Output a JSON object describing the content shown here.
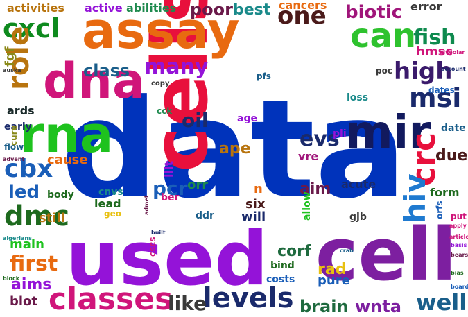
{
  "words": [
    {
      "text": "data",
      "color": "#0033bb"
    },
    {
      "text": "cells",
      "color": "#e8103c"
    },
    {
      "text": "used",
      "color": "#9413d8"
    },
    {
      "text": "cell",
      "color": "#7d1fa0"
    },
    {
      "text": "assay",
      "color": "#e86a10"
    },
    {
      "text": "dna",
      "color": "#d0157a"
    },
    {
      "text": "rna",
      "color": "#1ec21e"
    },
    {
      "text": "mir",
      "color": "#121a5e"
    },
    {
      "text": "classes",
      "color": "#d0157a"
    },
    {
      "text": "levels",
      "color": "#1a2a6b"
    },
    {
      "text": "can",
      "color": "#2ec22e"
    },
    {
      "text": "cxcl",
      "color": "#0e8a1e"
    },
    {
      "text": "role",
      "color": "#b8740e"
    },
    {
      "text": "crc",
      "color": "#e8103c"
    },
    {
      "text": "hiv",
      "color": "#1f7ad0"
    },
    {
      "text": "cbx",
      "color": "#1a5eb8"
    },
    {
      "text": "dmc",
      "color": "#1e6a1e"
    },
    {
      "text": "first",
      "color": "#e86a10"
    },
    {
      "text": "high",
      "color": "#3a1a6b"
    },
    {
      "text": "msi",
      "color": "#1a2a6b"
    },
    {
      "text": "many",
      "color": "#9413d8"
    },
    {
      "text": "one",
      "color": "#4a1a1a"
    },
    {
      "text": "biotic",
      "color": "#a0157a"
    },
    {
      "text": "fish",
      "color": "#0e8a4e"
    },
    {
      "text": "well",
      "color": "#1a5e8a"
    },
    {
      "text": "like",
      "color": "#3a3a3a"
    },
    {
      "text": "aims",
      "color": "#9413d8"
    },
    {
      "text": "brain",
      "color": "#1e6a3e"
    },
    {
      "text": "wnta",
      "color": "#7d1fa0"
    },
    {
      "text": "poor",
      "color": "#6a1a4a"
    },
    {
      "text": "best",
      "color": "#1a8a8a"
    },
    {
      "text": "pcr",
      "color": "#1a5eb8"
    },
    {
      "text": "evs",
      "color": "#1a2a6b"
    },
    {
      "text": "class",
      "color": "#1a5e8a"
    },
    {
      "text": "oil",
      "color": "#1a2a6b"
    },
    {
      "text": "ape",
      "color": "#b8740e"
    },
    {
      "text": "led",
      "color": "#1a5eb8"
    },
    {
      "text": "main",
      "color": "#1ec21e"
    },
    {
      "text": "cause",
      "color": "#e86a10"
    },
    {
      "text": "still",
      "color": "#b8740e"
    },
    {
      "text": "aim",
      "color": "#6a1a4a"
    },
    {
      "text": "corf",
      "color": "#1e6a3e"
    },
    {
      "text": "rad",
      "color": "#e8c010"
    },
    {
      "text": "pure",
      "color": "#1a5eb8"
    },
    {
      "text": "due",
      "color": "#4a1a1a"
    },
    {
      "text": "hmsc",
      "color": "#d0157a"
    },
    {
      "text": "error",
      "color": "#3a3a3a"
    },
    {
      "text": "cancers",
      "color": "#e86a10"
    },
    {
      "text": "abilities",
      "color": "#1e8a4e"
    },
    {
      "text": "active",
      "color": "#9413d8"
    },
    {
      "text": "activities",
      "color": "#b8740e"
    },
    {
      "text": "fgf",
      "color": "#8a8a1a"
    },
    {
      "text": "ards",
      "color": "#1a2a2a"
    },
    {
      "text": "lead",
      "color": "#1e6a1e"
    },
    {
      "text": "six",
      "color": "#4a1a1a"
    },
    {
      "text": "will",
      "color": "#1a2a6b"
    },
    {
      "text": "orr",
      "color": "#1e8a4e"
    },
    {
      "text": "vre",
      "color": "#a0157a"
    },
    {
      "text": "acute",
      "color": "#1a2a6b"
    },
    {
      "text": "form",
      "color": "#1e6a1e"
    },
    {
      "text": "date",
      "color": "#1a5e8a"
    },
    {
      "text": "dates",
      "color": "#1a5eb8"
    },
    {
      "text": "loss",
      "color": "#1a8a8a"
    },
    {
      "text": "poc",
      "color": "#3a3a3a"
    },
    {
      "text": "pfs",
      "color": "#1a5e8a"
    },
    {
      "text": "cnvs",
      "color": "#1a8a8a"
    },
    {
      "text": "ddr",
      "color": "#1a5e8a"
    },
    {
      "text": "blot",
      "color": "#6a1a4a"
    },
    {
      "text": "body",
      "color": "#1e6a1e"
    },
    {
      "text": "flow",
      "color": "#1a5e8a"
    },
    {
      "text": "early",
      "color": "#1a2a6b"
    },
    {
      "text": "age",
      "color": "#9413d8"
    },
    {
      "text": "bind",
      "color": "#1e6a1e"
    },
    {
      "text": "costs",
      "color": "#1a5eb8"
    },
    {
      "text": "gjb",
      "color": "#3a3a3a"
    },
    {
      "text": "allow",
      "color": "#1ec21e"
    },
    {
      "text": "lllt",
      "color": "#9413d8"
    },
    {
      "text": "n",
      "color": "#e86a10"
    },
    {
      "text": "copy",
      "color": "#3a3a3a"
    },
    {
      "text": "cscs",
      "color": "#d0157a"
    },
    {
      "text": "cure",
      "color": "#8a8a1a"
    },
    {
      "text": "cck",
      "color": "#1e8a4e"
    },
    {
      "text": "pli",
      "color": "#9413d8"
    },
    {
      "text": "ber",
      "color": "#d0157a"
    },
    {
      "text": "geo",
      "color": "#e8c010"
    },
    {
      "text": "put",
      "color": "#d0157a"
    },
    {
      "text": "orfs",
      "color": "#1a5eb8"
    },
    {
      "text": "admet",
      "color": "#6a1a4a"
    },
    {
      "text": "built",
      "color": "#1a2a6b"
    },
    {
      "text": "crab",
      "color": "#1a5e8a"
    },
    {
      "text": "block",
      "color": "#1e6a1e"
    },
    {
      "text": "alveolar",
      "color": "#d0157a"
    },
    {
      "text": "account",
      "color": "#1a2a6b"
    },
    {
      "text": "article",
      "color": "#d0157a"
    },
    {
      "text": "basis",
      "color": "#9413d8"
    },
    {
      "text": "bears",
      "color": "#6a1a4a"
    },
    {
      "text": "board",
      "color": "#1a5eb8"
    },
    {
      "text": "algerians",
      "color": "#1a8a8a"
    },
    {
      "text": "advent",
      "color": "#6a1a4a"
    },
    {
      "text": "apply",
      "color": "#d0157a"
    },
    {
      "text": "bias",
      "color": "#1e6a1e"
    },
    {
      "text": "auska",
      "color": "#3a3a3a"
    }
  ]
}
